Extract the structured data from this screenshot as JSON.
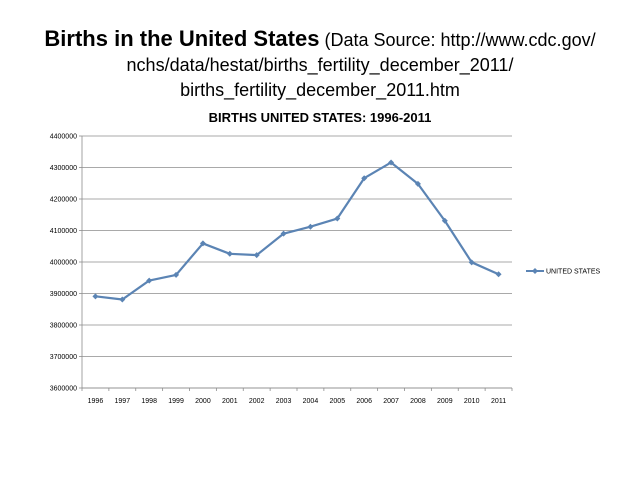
{
  "slide": {
    "title_main": "Births in the United States",
    "title_source_l1": "(Data Source: http://www.cdc.gov/",
    "title_source_l2": "nchs/data/hestat/births_fertility_december_2011/",
    "title_source_l3": "births_fertility_december_2011.htm"
  },
  "chart_data": {
    "type": "line",
    "title": "BIRTHS UNITED STATES: 1996-2011",
    "xlabel": "",
    "ylabel": "",
    "categories": [
      "1996",
      "1997",
      "1998",
      "1999",
      "2000",
      "2001",
      "2002",
      "2003",
      "2004",
      "2005",
      "2006",
      "2007",
      "2008",
      "2009",
      "2010",
      "2011"
    ],
    "series": [
      {
        "name": "UNITED STATES",
        "color": "#5b84b4",
        "values": [
          3891000,
          3881000,
          3941000,
          3959000,
          4059000,
          4026000,
          4022000,
          4090000,
          4112000,
          4138000,
          4266000,
          4316000,
          4248000,
          4131000,
          3999000,
          3961000
        ]
      }
    ],
    "ylim": [
      3600000,
      4400000
    ],
    "yticks": [
      "3600000",
      "3700000",
      "3800000",
      "3900000",
      "4000000",
      "4100000",
      "4200000",
      "4300000",
      "4400000"
    ],
    "grid": true,
    "legend_position": "right"
  }
}
